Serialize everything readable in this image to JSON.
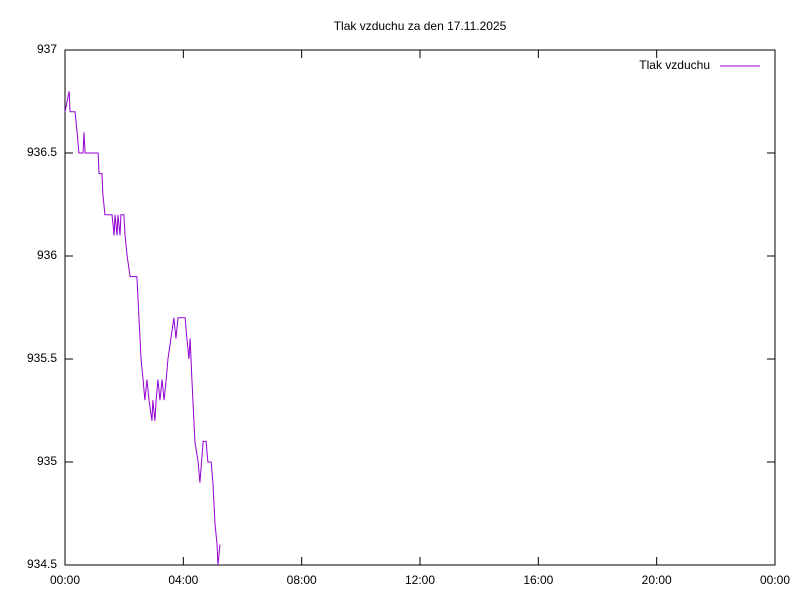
{
  "chart_data": {
    "type": "line",
    "title": "Tlak vzduchu za den 17.11.2025",
    "series": [
      {
        "name": "Tlak vzduchu",
        "color": "#9400d3",
        "x": [
          0,
          0.14,
          0.17,
          0.34,
          0.41,
          0.47,
          0.61,
          0.64,
          0.68,
          1.12,
          1.15,
          1.25,
          1.28,
          1.35,
          1.59,
          1.66,
          1.69,
          1.76,
          1.79,
          1.86,
          1.89,
          1.99,
          2.03,
          2.1,
          2.2,
          2.43,
          2.5,
          2.57,
          2.64,
          2.7,
          2.77,
          2.84,
          2.94,
          2.97,
          3.04,
          3.08,
          3.14,
          3.21,
          3.28,
          3.35,
          3.42,
          3.48,
          3.58,
          3.68,
          3.75,
          3.82,
          4.06,
          4.12,
          4.19,
          4.23,
          4.29,
          4.39,
          4.5,
          4.56,
          4.67,
          4.77,
          4.83,
          4.94,
          5.0,
          5.07,
          5.14,
          5.17,
          5.24
        ],
        "values": [
          936.7,
          936.8,
          936.7,
          936.7,
          936.6,
          936.5,
          936.5,
          936.6,
          936.5,
          936.5,
          936.4,
          936.4,
          936.3,
          936.2,
          936.2,
          936.1,
          936.2,
          936.1,
          936.2,
          936.1,
          936.2,
          936.2,
          936.1,
          936.0,
          935.9,
          935.9,
          935.7,
          935.5,
          935.4,
          935.3,
          935.4,
          935.3,
          935.2,
          935.3,
          935.2,
          935.3,
          935.4,
          935.3,
          935.4,
          935.3,
          935.4,
          935.5,
          935.6,
          935.7,
          935.6,
          935.7,
          935.7,
          935.6,
          935.5,
          935.6,
          935.4,
          935.1,
          935.0,
          934.9,
          935.1,
          935.1,
          935.0,
          935.0,
          934.9,
          934.7,
          934.6,
          934.5,
          934.6
        ]
      }
    ],
    "xlim": [
      0,
      24
    ],
    "xticks": [
      {
        "value": 0,
        "label": "00:00"
      },
      {
        "value": 4,
        "label": "04:00"
      },
      {
        "value": 8,
        "label": "08:00"
      },
      {
        "value": 12,
        "label": "12:00"
      },
      {
        "value": 16,
        "label": "16:00"
      },
      {
        "value": 20,
        "label": "20:00"
      },
      {
        "value": 24,
        "label": "00:00"
      }
    ],
    "ylim": [
      934.5,
      937
    ],
    "yticks": [
      934.5,
      935,
      935.5,
      936,
      936.5,
      937
    ],
    "legend": "upper right",
    "grid": false
  }
}
